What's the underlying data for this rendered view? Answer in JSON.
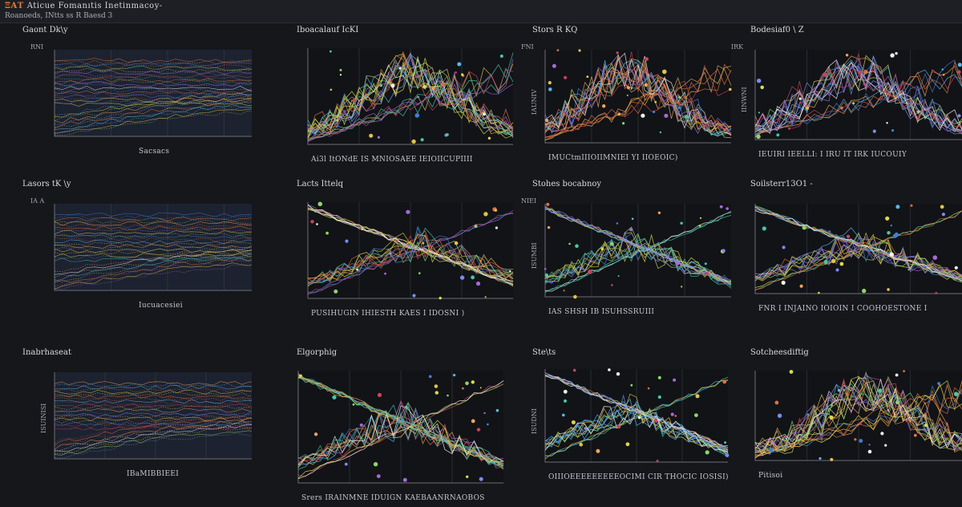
{
  "app": {
    "title_accent": "ΞΑΤ",
    "title": "Aticue Fomanıtis Inetinmacoy-",
    "subtitle": "Roanoeds, INtts  ss  R  Baesd 3"
  },
  "colors": {
    "background": "#15171b",
    "panel_bg": "#1a1c21",
    "panel_dark": "#111317",
    "axis": "#6a6e75",
    "grid": "#3a3e45"
  },
  "chart_data": [
    {
      "type": "line",
      "style": "band",
      "title": "Gaont Dk\\y",
      "ylabel": "",
      "yunit": "RNI",
      "xlabel": "Sacsacs",
      "series_count": 34,
      "dots": false
    },
    {
      "type": "line",
      "style": "peak",
      "title": "Iboacalauf IcKI",
      "ylabel": "",
      "yunit": "",
      "xlabel": "Ai3l ItONdE  IS  MNIOSAEE  IEIOIICUPIIII",
      "series_count": 22,
      "dots": true,
      "peak_x": 0.5
    },
    {
      "type": "line",
      "style": "peak",
      "title": "Stors  R KQ",
      "ylabel": "IAUNIV",
      "yunit": "FNI",
      "xlabel": "IMUCtmIIIOIIMNIEI YI  IIOEOIC)",
      "series_count": 20,
      "dots": true,
      "peak_x": 0.45
    },
    {
      "type": "line",
      "style": "peak",
      "title": "Bodesiaf0 \\ Z",
      "ylabel": "IINWNI",
      "yunit": "IRK",
      "xlabel": "IEUIRI  IEELLI: I IRU IT  IRK  IUCOUIY",
      "series_count": 20,
      "dots": true,
      "peak_x": 0.5
    },
    {
      "type": "line",
      "style": "band",
      "title": "Lasors  tK \\y",
      "ylabel": "",
      "yunit": "IA  A",
      "xlabel": "Iucuacesiei",
      "series_count": 30,
      "dots": false
    },
    {
      "type": "line",
      "style": "cross",
      "title": "Lacts  Ittelq",
      "ylabel": "",
      "yunit": "",
      "xlabel": "PUSIHUGIN   IHIESTH  KAES   I  IDOSNI  )",
      "series_count": 22,
      "dots": true,
      "peak_x": 0.55
    },
    {
      "type": "line",
      "style": "cross",
      "title": "Stohes  bocabnoy",
      "ylabel": "ISUMBI",
      "yunit": "NIEI",
      "xlabel": "IAS  SHSH  IB  ISUHSSRUIII",
      "series_count": 20,
      "dots": true,
      "peak_x": 0.48
    },
    {
      "type": "line",
      "style": "cross",
      "title": "Soilsterr13O1  -",
      "ylabel": "",
      "yunit": "",
      "xlabel": "FNR  I  INJAINO IOIOIN  I  COOHOESTONE  I",
      "series_count": 22,
      "dots": true,
      "peak_x": 0.5
    },
    {
      "type": "line",
      "style": "band",
      "title": "Inabrhaseat",
      "ylabel": "ISUINISI",
      "yunit": "",
      "xlabel": "IBaMIBBIEEI",
      "series_count": 30,
      "dots": false
    },
    {
      "type": "line",
      "style": "cross",
      "title": "Elgorphig",
      "ylabel": "",
      "yunit": "",
      "xlabel": "Srers  IRAINMNE   IDUIGN  KAEBAANRNAOBOS",
      "series_count": 22,
      "dots": true,
      "peak_x": 0.5
    },
    {
      "type": "line",
      "style": "cross",
      "title": "Ste\\ts",
      "ylabel": "ISUDNI",
      "yunit": "",
      "xlabel": "OIIIOEEEEEEEEEOCIMI  CIR  THOCIC  IOSISI)",
      "series_count": 20,
      "dots": true,
      "peak_x": 0.45
    },
    {
      "type": "line",
      "style": "peak",
      "title": "Sotcheesdiftig",
      "ylabel": "",
      "yunit": "",
      "xlabel": "Pitisoi",
      "series_count": 22,
      "dots": true,
      "peak_x": 0.55
    }
  ]
}
